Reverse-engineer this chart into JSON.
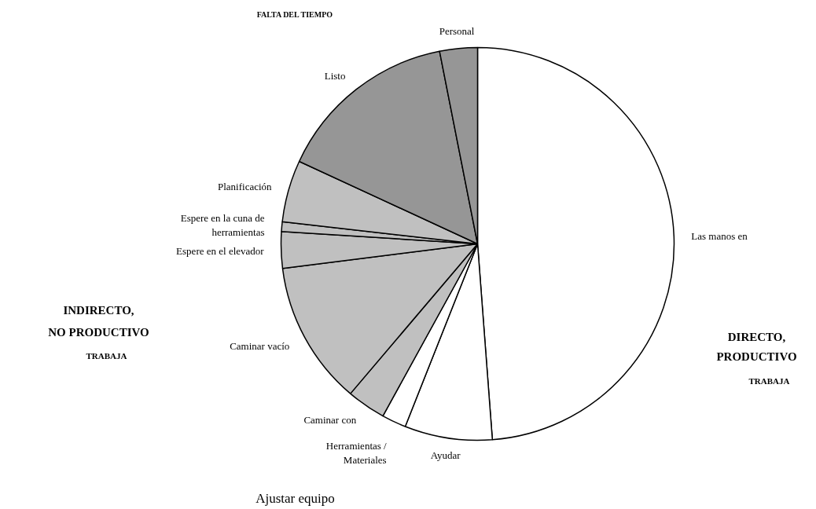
{
  "chart_data": {
    "type": "pie",
    "categories": [
      "Las manos en",
      "Ayudar",
      "Herramientas / Materiales",
      "Caminar con",
      "Caminar vacío",
      "Espere en el elevador",
      "Espere en la cuna de herramientas",
      "Planificación",
      "Listo",
      "Personal"
    ],
    "values": [
      48.8,
      7.2,
      2.0,
      3.2,
      11.8,
      3.0,
      0.8,
      5.1,
      15.0,
      3.1
    ],
    "colors": [
      "#ffffff",
      "#ffffff",
      "#ffffff",
      "#c0c0c0",
      "#c0c0c0",
      "#c0c0c0",
      "#c0c0c0",
      "#c0c0c0",
      "#969696",
      "#969696"
    ],
    "annotations": [
      "FALTA DEL TIEMPO",
      "INDIRECTO,",
      "NO PRODUCTIVO",
      "TRABAJA",
      "DIRECTO,",
      "PRODUCTIVO",
      "TRABAJA",
      "Ajustar equipo"
    ]
  }
}
